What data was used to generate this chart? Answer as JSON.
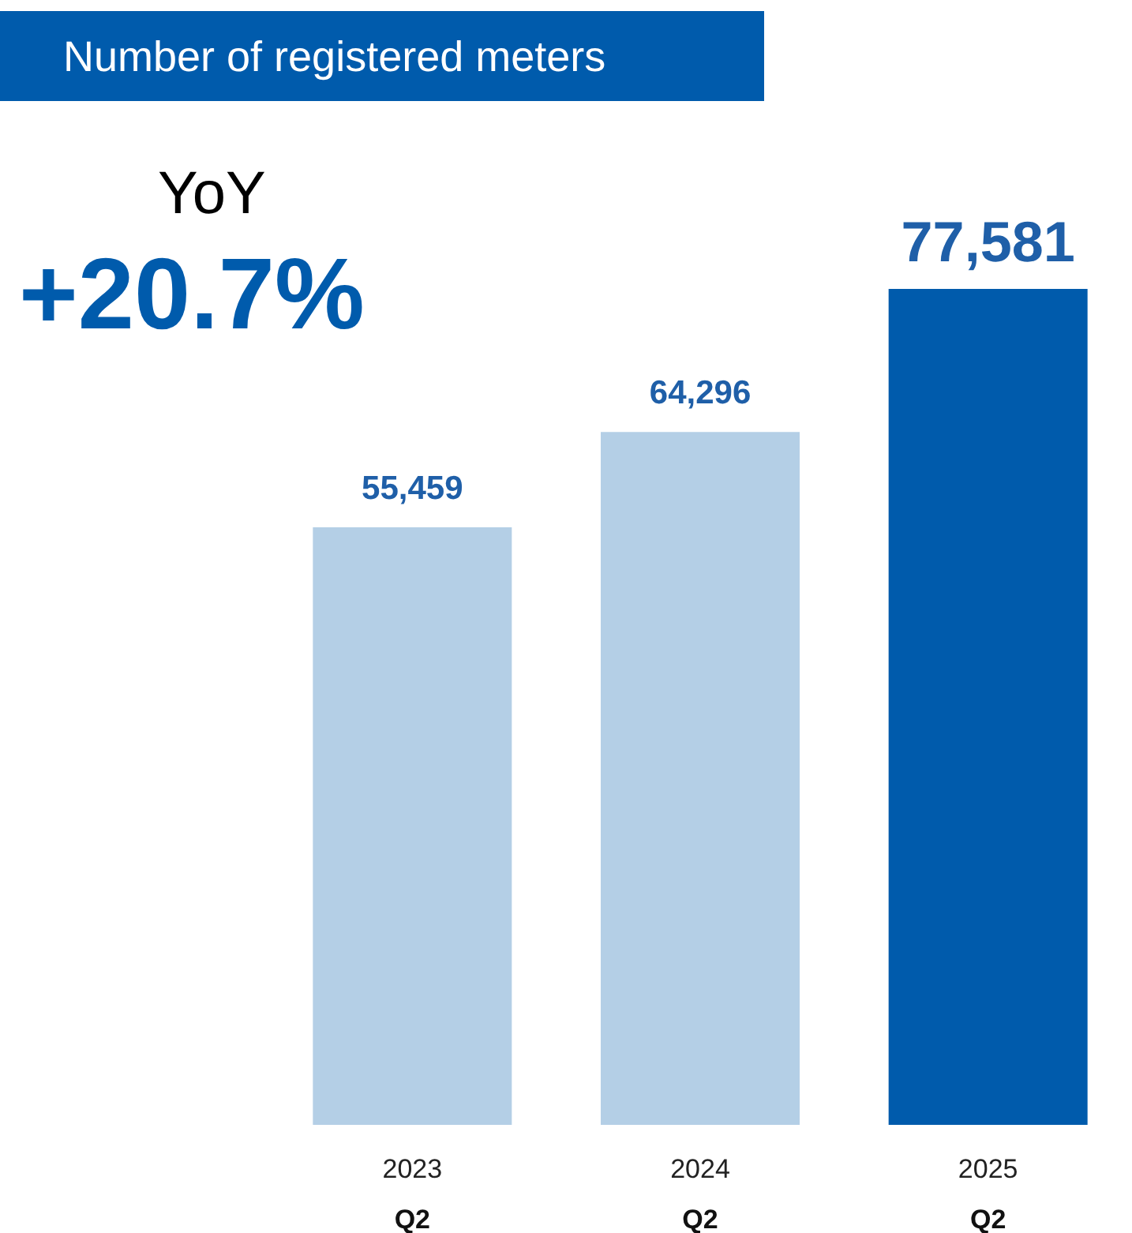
{
  "chart_data": {
    "type": "bar",
    "title": "Number of registered meters",
    "annotations": [
      "YoY",
      "+20.7%"
    ],
    "categories": [
      "2023\nQ2",
      "2024\nQ2",
      "2025\nQ2"
    ],
    "values": [
      55459,
      64296,
      77581
    ],
    "value_labels": [
      "55,459",
      "64,296",
      "77,581"
    ],
    "colors": [
      "#b4cfe6",
      "#b4cfe6",
      "#005bac"
    ]
  }
}
